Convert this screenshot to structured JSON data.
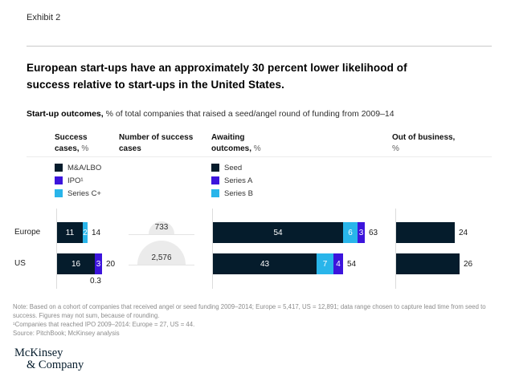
{
  "exhibit_label": "Exhibit 2",
  "title": "European start-ups have an approximately 30 percent lower likelihood of success relative to start-ups in the United States.",
  "subtitle": {
    "bold": "Start-up outcomes,",
    "rest": " % of total companies that raised a seed/angel round of funding from 2009–14"
  },
  "colors": {
    "dark": "#051c2c",
    "indigo": "#3c14dc",
    "cyan": "#29b5ea",
    "shape_gray": "#ebebeb"
  },
  "columns": [
    {
      "bold": "Success cases,",
      "unit": "%"
    },
    {
      "bold": "Number of success cases",
      "unit": ""
    },
    {
      "bold": "Awaiting outcomes,",
      "unit": "%"
    },
    {
      "bold": "Out of business,",
      "unit": "%"
    }
  ],
  "legends": {
    "success": [
      {
        "label": "M&A/LBO",
        "color_key": "dark"
      },
      {
        "label": "IPO¹",
        "color_key": "indigo"
      },
      {
        "label": "Series C+",
        "color_key": "cyan"
      }
    ],
    "awaiting": [
      {
        "label": "Seed",
        "color_key": "dark"
      },
      {
        "label": "Series A",
        "color_key": "indigo"
      },
      {
        "label": "Series B",
        "color_key": "cyan"
      }
    ]
  },
  "rows": [
    "Europe",
    "US"
  ],
  "chart_data": {
    "type": "bar",
    "categories": [
      "Europe",
      "US"
    ],
    "unit": "% of total companies that raised a seed/angel round of funding from 2009–14",
    "panels": [
      {
        "title": "Success cases, %",
        "bars": [
          {
            "category": "Europe",
            "segments": [
              {
                "name": "M&A/LBO",
                "label": "11",
                "value": 11,
                "color_key": "dark"
              },
              {
                "name": "Series C+",
                "label": "2",
                "value": 2,
                "color_key": "cyan"
              }
            ],
            "total": "14"
          },
          {
            "category": "US",
            "segments": [
              {
                "name": "M&A/LBO",
                "label": "16",
                "value": 16,
                "color_key": "dark"
              },
              {
                "name": "IPO",
                "label": "3",
                "value": 3,
                "color_key": "indigo"
              }
            ],
            "total": "20",
            "below_annotation": "0.3"
          }
        ]
      },
      {
        "title": "Number of success cases",
        "shapes": [
          {
            "category": "Europe",
            "value": 733,
            "label": "733"
          },
          {
            "category": "US",
            "value": 2576,
            "label": "2,576"
          }
        ]
      },
      {
        "title": "Awaiting outcomes, %",
        "bars": [
          {
            "category": "Europe",
            "segments": [
              {
                "name": "Seed",
                "label": "54",
                "value": 54,
                "color_key": "dark"
              },
              {
                "name": "Series B",
                "label": "6",
                "value": 6,
                "color_key": "cyan"
              },
              {
                "name": "Series A",
                "label": "3",
                "value": 3,
                "color_key": "indigo"
              }
            ],
            "total": "63"
          },
          {
            "category": "US",
            "segments": [
              {
                "name": "Seed",
                "label": "43",
                "value": 43,
                "color_key": "dark"
              },
              {
                "name": "Series B",
                "label": "7",
                "value": 7,
                "color_key": "cyan"
              },
              {
                "name": "Series A",
                "label": "4",
                "value": 4,
                "color_key": "indigo"
              }
            ],
            "total": "54"
          }
        ]
      },
      {
        "title": "Out of business, %",
        "bars": [
          {
            "category": "Europe",
            "segments": [
              {
                "name": "Out of business",
                "label": "",
                "value": 24,
                "color_key": "dark"
              }
            ],
            "total": "24"
          },
          {
            "category": "US",
            "segments": [
              {
                "name": "Out of business",
                "label": "",
                "value": 26,
                "color_key": "dark"
              }
            ],
            "total": "26"
          }
        ]
      }
    ]
  },
  "footnotes": [
    "Note: Based on a cohort of companies that received angel or seed funding 2009–2014; Europe = 5,417, US = 12,891; data range chosen to capture lead time from seed to success. Figures may not sum, because of rounding.",
    "¹Companies that reached IPO 2009–2014: Europe = 27, US = 44.",
    "Source: PitchBook; McKinsey analysis"
  ],
  "logo": {
    "line1": "McKinsey",
    "line2": "& Company"
  }
}
